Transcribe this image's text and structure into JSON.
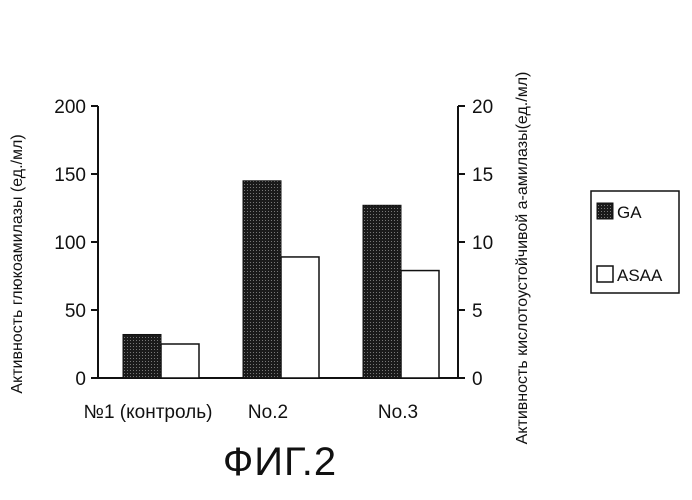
{
  "figure_label": "ФИГ.2",
  "chart_data": {
    "type": "bar",
    "categories": [
      "№1 (контроль)",
      "No.2",
      "No.3"
    ],
    "series": [
      {
        "name": "GA",
        "axis": "left",
        "color": "#222222",
        "values": [
          32,
          145,
          127
        ]
      },
      {
        "name": "ASAA",
        "axis": "right",
        "color": "#ffffff",
        "values": [
          2.5,
          8.9,
          7.9
        ]
      }
    ],
    "y_left": {
      "label": "Активность глюкоамилазы (ед./мл)",
      "ylim": [
        0,
        200
      ],
      "ticks": [
        "0",
        "50",
        "100",
        "150",
        "200"
      ]
    },
    "y_right": {
      "label": "Активность кислотоустойчивой а-амилазы(ед./мл)",
      "ylim": [
        0,
        20
      ],
      "ticks": [
        "0",
        "5",
        "10",
        "15",
        "20"
      ]
    },
    "grid": false,
    "legend_position": "right"
  }
}
